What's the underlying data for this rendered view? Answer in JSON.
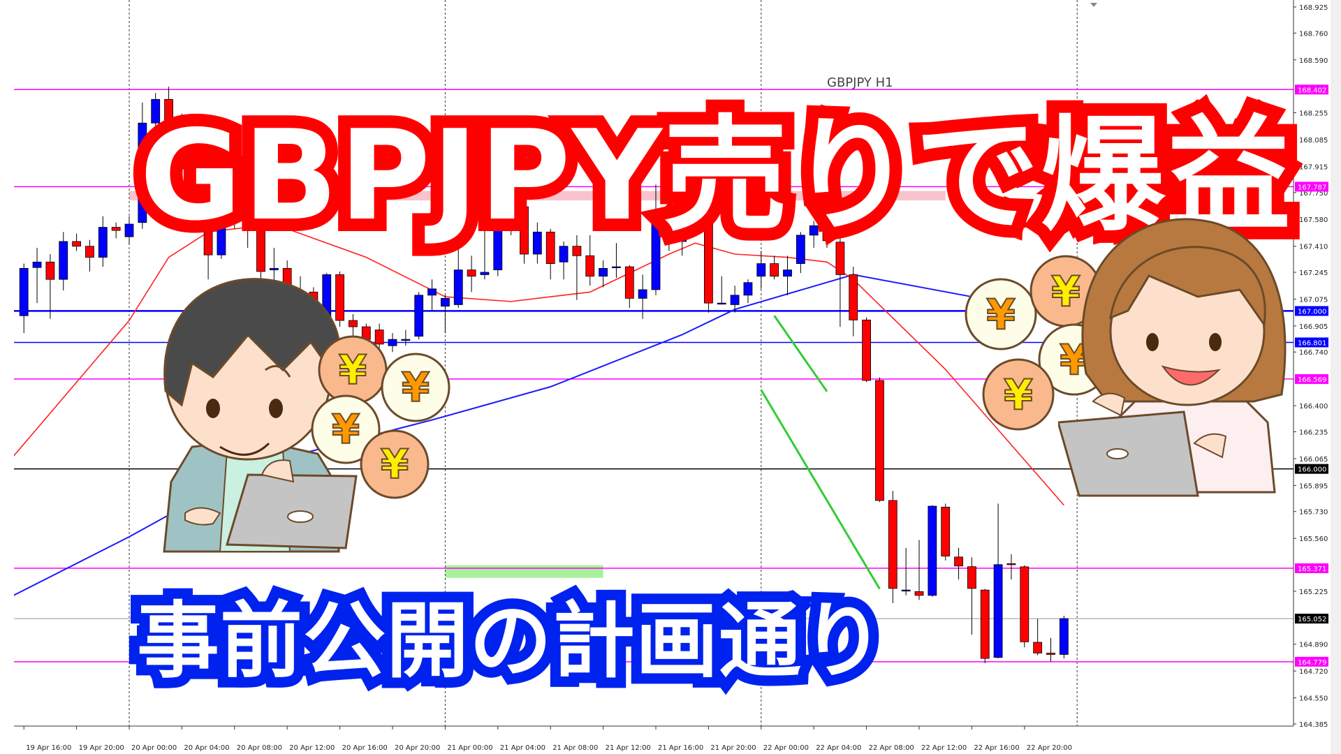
{
  "chart_data": {
    "type": "candlestick",
    "title": "GBPJPY H1",
    "symbol": "GBPJPY",
    "timeframe": "H1",
    "ylim": [
      164.385,
      168.925
    ],
    "colors": {
      "bull": "#0000ff",
      "bear": "#ff0000",
      "wick": "#000000",
      "resistance": "#ff00ff",
      "support_blue": "#0000ff",
      "round_level": "#000000",
      "ma_fast": "#ff2020",
      "ma_slow": "#1a1aff",
      "trend": "#33cc33",
      "zone_pink": "#f7b8c4",
      "zone_green": "#99ee88"
    },
    "price_ticks": [
      "168.925",
      "168.760",
      "168.590",
      "168.255",
      "168.085",
      "167.915",
      "167.750",
      "167.580",
      "167.410",
      "167.245",
      "167.075",
      "166.905",
      "166.740",
      "166.400",
      "166.235",
      "166.065",
      "165.895",
      "165.730",
      "165.560",
      "165.225",
      "164.890",
      "164.720",
      "164.550",
      "164.385"
    ],
    "time_ticks": [
      "19 Apr 16:00",
      "19 Apr 20:00",
      "20 Apr 00:00",
      "20 Apr 04:00",
      "20 Apr 08:00",
      "20 Apr 12:00",
      "20 Apr 16:00",
      "20 Apr 20:00",
      "21 Apr 00:00",
      "21 Apr 04:00",
      "21 Apr 08:00",
      "21 Apr 12:00",
      "21 Apr 16:00",
      "21 Apr 20:00",
      "22 Apr 00:00",
      "22 Apr 04:00",
      "22 Apr 08:00",
      "22 Apr 12:00",
      "22 Apr 16:00",
      "22 Apr 20:00"
    ],
    "day_separators": [
      "20 Apr 00:00",
      "21 Apr 00:00",
      "22 Apr 00:00",
      "23 Apr 00:00"
    ],
    "levels": [
      {
        "price": 168.402,
        "label": "168.402",
        "color": "#ff00ff",
        "style": "resistance"
      },
      {
        "price": 167.787,
        "label": "167.787",
        "color": "#ff00ff",
        "style": "resistance"
      },
      {
        "price": 167.0,
        "label": "167.000",
        "color": "#0000ff",
        "style": "thick"
      },
      {
        "price": 166.801,
        "label": "166.801",
        "color": "#0000ff",
        "style": "thin"
      },
      {
        "price": 166.569,
        "label": "166.569",
        "color": "#ff00ff",
        "style": "resistance"
      },
      {
        "price": 166.0,
        "label": "166.000",
        "color": "#000000",
        "style": "round"
      },
      {
        "price": 165.371,
        "label": "165.371",
        "color": "#ff00ff",
        "style": "resistance"
      },
      {
        "price": 165.052,
        "label": "165.052",
        "color": "#000000",
        "style": "current"
      },
      {
        "price": 164.779,
        "label": "164.779",
        "color": "#ff00ff",
        "style": "resistance"
      }
    ],
    "zones": [
      {
        "from": "20 Apr 00:00",
        "to": "22 Apr 14:00",
        "low": 167.7,
        "high": 167.76,
        "color": "#f7b8c4"
      },
      {
        "from": "21 Apr 00:00",
        "to": "21 Apr 12:00",
        "low": 165.31,
        "high": 165.39,
        "color": "#99ee88"
      }
    ],
    "trendlines": [
      {
        "points": [
          [
            "22 Apr 01:00",
            166.97
          ],
          [
            "22 Apr 05:00",
            166.49
          ]
        ],
        "color": "#33cc33"
      },
      {
        "points": [
          [
            "22 Apr 00:00",
            166.5
          ],
          [
            "22 Apr 09:00",
            165.24
          ]
        ],
        "color": "#33cc33"
      }
    ],
    "ma_fast": [
      [
        "19 Apr 15:00",
        166.06
      ],
      [
        "20 Apr 00:00",
        166.94
      ],
      [
        "20 Apr 03:00",
        167.34
      ],
      [
        "20 Apr 06:00",
        167.5
      ],
      [
        "20 Apr 11:00",
        167.55
      ],
      [
        "20 Apr 18:00",
        167.34
      ],
      [
        "21 Apr 00:00",
        167.09
      ],
      [
        "21 Apr 05:00",
        167.06
      ],
      [
        "21 Apr 11:00",
        167.12
      ],
      [
        "21 Apr 17:00",
        167.36
      ],
      [
        "21 Apr 19:00",
        167.43
      ],
      [
        "21 Apr 22:00",
        167.36
      ],
      [
        "22 Apr 02:00",
        167.34
      ],
      [
        "22 Apr 05:00",
        167.31
      ],
      [
        "22 Apr 07:00",
        167.2
      ],
      [
        "22 Apr 14:00",
        166.63
      ],
      [
        "22 Apr 23:00",
        165.77
      ]
    ],
    "ma_slow": [
      [
        "19 Apr 15:00",
        165.19
      ],
      [
        "20 Apr 00:00",
        165.57
      ],
      [
        "20 Apr 10:00",
        166.03
      ],
      [
        "20 Apr 23:00",
        166.31
      ],
      [
        "21 Apr 08:00",
        166.52
      ],
      [
        "21 Apr 18:00",
        166.85
      ],
      [
        "21 Apr 22:00",
        167.01
      ],
      [
        "22 Apr 07:00",
        167.23
      ],
      [
        "22 Apr 16:00",
        167.09
      ]
    ],
    "candles": [
      [
        "19 Apr 16:00",
        166.97,
        167.3,
        166.86,
        167.27
      ],
      [
        "19 Apr 17:00",
        167.275,
        167.4,
        167.05,
        167.31
      ],
      [
        "19 Apr 18:00",
        167.31,
        167.36,
        166.95,
        167.2
      ],
      [
        "19 Apr 19:00",
        167.2,
        167.5,
        167.13,
        167.44
      ],
      [
        "19 Apr 20:00",
        167.44,
        167.49,
        167.38,
        167.41
      ],
      [
        "19 Apr 21:00",
        167.41,
        167.45,
        167.25,
        167.34
      ],
      [
        "19 Apr 22:00",
        167.34,
        167.6,
        167.28,
        167.53
      ],
      [
        "19 Apr 23:00",
        167.53,
        167.56,
        167.46,
        167.51
      ],
      [
        "20 Apr 00:00",
        167.47,
        167.6,
        167.42,
        167.55
      ],
      [
        "20 Apr 01:00",
        167.56,
        168.32,
        167.52,
        168.19
      ],
      [
        "20 Apr 02:00",
        168.19,
        168.38,
        168.12,
        168.34
      ],
      [
        "20 Apr 03:00",
        168.34,
        168.42,
        168.15,
        168.2
      ],
      [
        "20 Apr 04:00",
        168.2,
        168.25,
        167.85,
        167.9
      ],
      [
        "20 Apr 05:00",
        167.9,
        167.95,
        167.58,
        167.64
      ],
      [
        "20 Apr 06:00",
        167.64,
        167.68,
        167.2,
        167.355
      ],
      [
        "20 Apr 07:00",
        167.355,
        167.6,
        167.33,
        167.56
      ],
      [
        "20 Apr 08:00",
        167.56,
        167.68,
        167.52,
        167.64
      ],
      [
        "20 Apr 09:00",
        167.64,
        167.7,
        167.4,
        167.55
      ],
      [
        "20 Apr 10:00",
        167.53,
        167.56,
        167.05,
        167.25
      ],
      [
        "20 Apr 11:00",
        167.26,
        167.4,
        167.15,
        167.27
      ],
      [
        "20 Apr 12:00",
        167.27,
        167.32,
        166.95,
        167.1
      ],
      [
        "20 Apr 13:00",
        167.1,
        167.22,
        167.0,
        167.12
      ],
      [
        "20 Apr 14:00",
        167.12,
        167.15,
        166.85,
        166.92
      ],
      [
        "20 Apr 15:00",
        166.91,
        167.24,
        166.86,
        167.23
      ],
      [
        "20 Apr 16:00",
        167.23,
        167.25,
        166.9,
        166.94
      ],
      [
        "20 Apr 17:00",
        166.94,
        166.98,
        166.8,
        166.9
      ],
      [
        "20 Apr 18:00",
        166.9,
        166.92,
        166.76,
        166.82
      ],
      [
        "20 Apr 19:00",
        166.88,
        166.92,
        166.74,
        166.79
      ],
      [
        "20 Apr 20:00",
        166.78,
        166.86,
        166.74,
        166.82
      ],
      [
        "20 Apr 21:00",
        166.82,
        166.88,
        166.78,
        166.82
      ],
      [
        "20 Apr 22:00",
        166.84,
        167.12,
        166.82,
        167.1
      ],
      [
        "20 Apr 23:00",
        167.1,
        167.2,
        167.0,
        167.14
      ],
      [
        "21 Apr 00:00",
        167.03,
        167.1,
        166.86,
        167.08
      ],
      [
        "21 Apr 01:00",
        167.04,
        167.4,
        167.02,
        167.26
      ],
      [
        "21 Apr 02:00",
        167.26,
        167.35,
        167.12,
        167.22
      ],
      [
        "21 Apr 03:00",
        167.23,
        167.55,
        167.2,
        167.245
      ],
      [
        "21 Apr 04:00",
        167.26,
        167.65,
        167.22,
        167.58
      ],
      [
        "21 Apr 05:00",
        167.58,
        167.8,
        167.48,
        167.63
      ],
      [
        "21 Apr 06:00",
        167.66,
        167.72,
        167.3,
        167.36
      ],
      [
        "21 Apr 07:00",
        167.36,
        167.56,
        167.3,
        167.5
      ],
      [
        "21 Apr 08:00",
        167.5,
        167.52,
        167.2,
        167.3
      ],
      [
        "21 Apr 09:00",
        167.31,
        167.44,
        167.2,
        167.41
      ],
      [
        "21 Apr 10:00",
        167.41,
        167.48,
        167.07,
        167.35
      ],
      [
        "21 Apr 11:00",
        167.35,
        167.48,
        167.16,
        167.22
      ],
      [
        "21 Apr 12:00",
        167.22,
        167.32,
        167.15,
        167.27
      ],
      [
        "21 Apr 13:00",
        167.28,
        167.43,
        167.21,
        167.28
      ],
      [
        "21 Apr 14:00",
        167.28,
        167.29,
        167.02,
        167.08
      ],
      [
        "21 Apr 15:00",
        167.08,
        167.23,
        166.95,
        167.135
      ],
      [
        "21 Apr 16:00",
        167.135,
        167.8,
        167.1,
        167.58
      ],
      [
        "21 Apr 17:00",
        167.58,
        167.78,
        167.38,
        167.45
      ],
      [
        "21 Apr 18:00",
        167.44,
        168.0,
        167.35,
        167.71
      ],
      [
        "21 Apr 19:00",
        167.71,
        167.76,
        167.55,
        167.6
      ],
      [
        "21 Apr 20:00",
        167.6,
        167.62,
        166.99,
        167.05
      ],
      [
        "21 Apr 21:00",
        167.05,
        167.22,
        167.04,
        167.05
      ],
      [
        "21 Apr 22:00",
        167.04,
        167.16,
        166.99,
        167.1
      ],
      [
        "21 Apr 23:00",
        167.1,
        167.2,
        167.05,
        167.18
      ],
      [
        "22 Apr 00:00",
        167.22,
        167.38,
        167.14,
        167.3
      ],
      [
        "22 Apr 01:00",
        167.3,
        167.35,
        167.2,
        167.22
      ],
      [
        "22 Apr 02:00",
        167.22,
        167.35,
        167.1,
        167.26
      ],
      [
        "22 Apr 03:00",
        167.3,
        167.5,
        167.24,
        167.48
      ],
      [
        "22 Apr 04:00",
        167.48,
        167.57,
        167.4,
        167.54
      ],
      [
        "22 Apr 05:00",
        167.53,
        167.55,
        167.4,
        167.445
      ],
      [
        "22 Apr 06:00",
        167.436,
        167.46,
        166.9,
        167.23
      ],
      [
        "22 Apr 07:00",
        167.23,
        167.28,
        166.84,
        166.943
      ],
      [
        "22 Apr 08:00",
        166.943,
        166.96,
        166.55,
        166.56
      ],
      [
        "22 Apr 09:00",
        166.56,
        166.58,
        165.79,
        165.8
      ],
      [
        "22 Apr 10:00",
        165.8,
        165.86,
        165.15,
        165.243
      ],
      [
        "22 Apr 11:00",
        165.233,
        165.5,
        165.2,
        165.233
      ],
      [
        "22 Apr 12:00",
        165.223,
        165.55,
        165.17,
        165.199
      ],
      [
        "22 Apr 13:00",
        165.199,
        165.77,
        165.19,
        165.764
      ],
      [
        "22 Apr 14:00",
        165.758,
        165.78,
        165.42,
        165.448
      ],
      [
        "22 Apr 15:00",
        165.442,
        165.5,
        165.3,
        165.385
      ],
      [
        "22 Apr 16:00",
        165.381,
        165.44,
        164.95,
        165.243
      ],
      [
        "22 Apr 17:00",
        165.233,
        165.24,
        164.77,
        164.8
      ],
      [
        "22 Apr 18:00",
        164.806,
        165.78,
        164.8,
        165.394
      ],
      [
        "22 Apr 19:00",
        165.4,
        165.46,
        165.3,
        165.394
      ],
      [
        "22 Apr 20:00",
        165.38,
        165.39,
        164.87,
        164.905
      ],
      [
        "22 Apr 21:00",
        164.902,
        165.05,
        164.82,
        164.834
      ],
      [
        "22 Apr 22:00",
        164.834,
        164.93,
        164.78,
        164.825
      ],
      [
        "22 Apr 23:00",
        164.825,
        165.07,
        164.8,
        165.052
      ]
    ]
  },
  "overlay": {
    "headline": "GBPJPY売りで爆益",
    "subline": "事前公開の計画通り",
    "yen_symbol": "¥"
  },
  "illustrations": {
    "left": "man-with-laptop",
    "right": "woman-with-laptop"
  }
}
